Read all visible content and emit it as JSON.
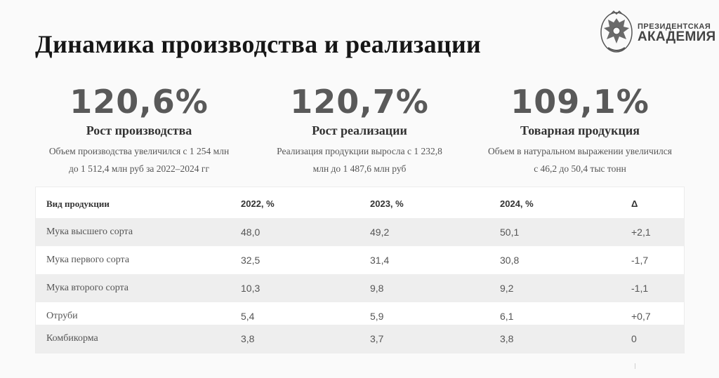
{
  "header": {
    "title": "Динамика производства и реализации"
  },
  "logo": {
    "line1": "ПРЕЗИДЕНТСКАЯ",
    "line2": "АКАДЕМИЯ"
  },
  "kpis": [
    {
      "value": "120,6%",
      "label": "Рост производства",
      "desc_line1": "Объем производства увеличился с 1 254 млн",
      "desc_line2": "до 1 512,4 млн руб за 2022–2024 гг"
    },
    {
      "value": "120,7%",
      "label": "Рост реализации",
      "desc_line1": "Реализация продукции выросла с 1 232,8",
      "desc_line2": "млн до 1 487,6 млн руб"
    },
    {
      "value": "109,1%",
      "label": "Товарная продукция",
      "desc_line1": "Объем в натуральном выражении увеличился",
      "desc_line2": "с 46,2 до 50,4 тыс тонн"
    }
  ],
  "table": {
    "columns": [
      "Вид продукции",
      "2022, %",
      "2023, %",
      "2024, %",
      "Δ"
    ],
    "rows": [
      [
        "Мука высшего сорта",
        "48,0",
        "49,2",
        "50,1",
        "+2,1"
      ],
      [
        "Мука первого сорта",
        "32,5",
        "31,4",
        "30,8",
        "-1,7"
      ],
      [
        "Мука второго сорта",
        "10,3",
        "9,8",
        "9,2",
        "-1,1"
      ],
      [
        "Отруби",
        "5,4",
        "5,9",
        "6,1",
        "+0,7"
      ],
      [
        "Комбикорма",
        "3,8",
        "3,7",
        "3,8",
        "0"
      ]
    ]
  }
}
